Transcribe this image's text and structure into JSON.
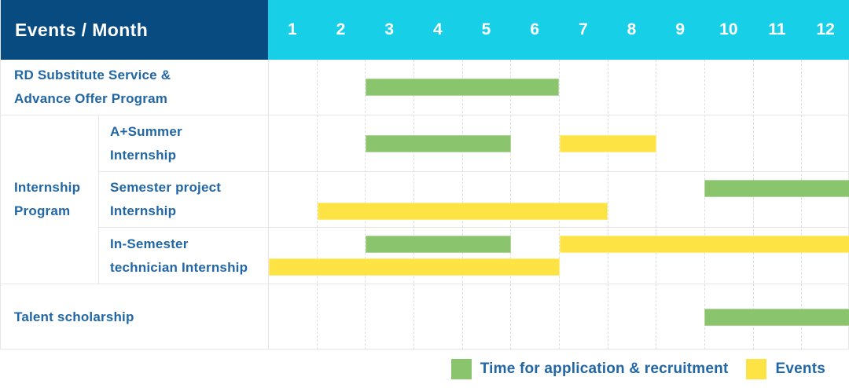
{
  "header": {
    "title": "Events / Month",
    "months": [
      "1",
      "2",
      "3",
      "4",
      "5",
      "6",
      "7",
      "8",
      "9",
      "10",
      "11",
      "12"
    ]
  },
  "labels": {
    "rd_row": "RD Substitute Service &\nAdvance Offer Program",
    "internship_group": "Internship\nProgram",
    "sub_a_summer": "A+Summer\nInternship",
    "sub_semester_project": "Semester project\nInternship",
    "sub_in_semester": "In-Semester\ntechnician Internship",
    "talent_row": "Talent scholarship"
  },
  "colors": {
    "header_bg": "#084b80",
    "months_bg": "#18cfe8",
    "text_blue": "#2166a5",
    "recruitment_green": "#8ac46c",
    "event_yellow": "#fde344",
    "grid_line": "#e6e6e6"
  },
  "chart_data": {
    "type": "gantt",
    "x_axis_label": "Events / Month",
    "months": [
      1,
      2,
      3,
      4,
      5,
      6,
      7,
      8,
      9,
      10,
      11,
      12
    ],
    "bar_types": {
      "recruitment": "#8ac46c",
      "event": "#fde344"
    },
    "rows": [
      {
        "label": "RD Substitute Service & Advance Offer Program",
        "group": null,
        "bars": [
          {
            "type": "recruitment",
            "start": 3,
            "end": 6,
            "line": 1
          }
        ]
      },
      {
        "label": "A+Summer Internship",
        "group": "Internship Program",
        "bars": [
          {
            "type": "recruitment",
            "start": 3,
            "end": 5,
            "line": 1
          },
          {
            "type": "event",
            "start": 7,
            "end": 8,
            "line": 1
          }
        ]
      },
      {
        "label": "Semester project Internship",
        "group": "Internship Program",
        "bars": [
          {
            "type": "recruitment",
            "start": 10,
            "end": 12,
            "line": 1
          },
          {
            "type": "event",
            "start": 2,
            "end": 7,
            "line": 2
          }
        ]
      },
      {
        "label": "In-Semester technician Internship",
        "group": "Internship Program",
        "bars": [
          {
            "type": "recruitment",
            "start": 3,
            "end": 5,
            "line": 1
          },
          {
            "type": "event",
            "start": 7,
            "end": 12,
            "line": 1
          },
          {
            "type": "event",
            "start": 1,
            "end": 6,
            "line": 2
          }
        ]
      },
      {
        "label": "Talent scholarship",
        "group": null,
        "bars": [
          {
            "type": "recruitment",
            "start": 10,
            "end": 12,
            "line": 1
          }
        ]
      }
    ],
    "legend": [
      {
        "type": "recruitment",
        "label": "Time for application & recruitment",
        "color": "#8ac46c"
      },
      {
        "type": "event",
        "label": "Events",
        "color": "#fde344"
      }
    ]
  }
}
